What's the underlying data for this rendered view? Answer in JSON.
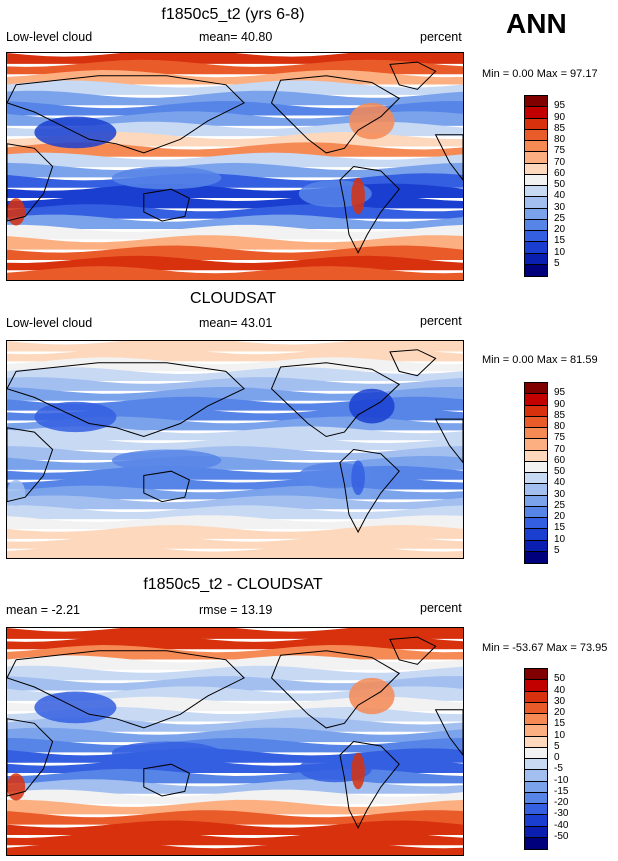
{
  "season": "ANN",
  "colors": {
    "p13": [
      "#800000",
      "#c30000",
      "#d8310e",
      "#ea5b2a",
      "#f68a55",
      "#fcb081",
      "#fdd8bd",
      "#f2f2f2",
      "#c8d9f4",
      "#a2bff0",
      "#7aa3ec",
      "#5785e7",
      "#345fe0",
      "#1a3fd0",
      "#0a1fb0",
      "#00007d"
    ],
    "land": "#4a78d6",
    "coast": "#000000"
  },
  "panels": [
    {
      "title": "f1850c5_t2 (yrs 6-8)",
      "left_label": "Low-level cloud",
      "center_label": "mean=  40.80",
      "right_label": "percent",
      "minmax": "Min =   0.00 Max =  97.17",
      "levels": [
        "95",
        "90",
        "85",
        "80",
        "75",
        "70",
        "60",
        "50",
        "40",
        "30",
        "25",
        "20",
        "15",
        "10",
        "5"
      ],
      "chart_data": {
        "type": "heatmap",
        "title": "f1850c5_t2 (yrs 6-8) Low-level cloud",
        "units": "percent",
        "mean": 40.8,
        "min": 0.0,
        "max": 97.17,
        "contour_levels": [
          5,
          10,
          15,
          20,
          25,
          30,
          40,
          50,
          60,
          70,
          75,
          80,
          85,
          90,
          95
        ]
      }
    },
    {
      "title": "CLOUDSAT",
      "left_label": "Low-level cloud",
      "center_label": "mean=  43.01",
      "right_label": "percent",
      "minmax": "Min =   0.00 Max =  81.59",
      "levels": [
        "95",
        "90",
        "85",
        "80",
        "75",
        "70",
        "60",
        "50",
        "40",
        "30",
        "25",
        "20",
        "15",
        "10",
        "5"
      ],
      "chart_data": {
        "type": "heatmap",
        "title": "CLOUDSAT Low-level cloud",
        "units": "percent",
        "mean": 43.01,
        "min": 0.0,
        "max": 81.59,
        "contour_levels": [
          5,
          10,
          15,
          20,
          25,
          30,
          40,
          50,
          60,
          70,
          75,
          80,
          85,
          90,
          95
        ]
      }
    },
    {
      "title": "f1850c5_t2 - CLOUDSAT",
      "left_label": "mean =  -2.21",
      "center_label": "rmse =  13.19",
      "right_label": "percent",
      "minmax": "Min = -53.67 Max =  73.95",
      "levels": [
        "50",
        "40",
        "30",
        "20",
        "15",
        "10",
        "5",
        "0",
        "-5",
        "-10",
        "-15",
        "-20",
        "-30",
        "-40",
        "-50"
      ],
      "chart_data": {
        "type": "heatmap",
        "title": "f1850c5_t2 - CLOUDSAT",
        "units": "percent",
        "mean": -2.21,
        "rmse": 13.19,
        "min": -53.67,
        "max": 73.95,
        "contour_levels": [
          -50,
          -40,
          -30,
          -20,
          -15,
          -10,
          -5,
          0,
          5,
          10,
          15,
          20,
          30,
          40,
          50
        ]
      }
    }
  ]
}
